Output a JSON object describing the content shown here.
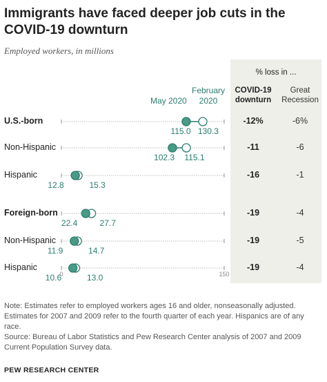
{
  "title": "Immigrants have faced deeper job cuts in the COVID-19 downturn",
  "subtitle": "Employed workers, in millions",
  "header": {
    "main": "% loss in ...",
    "col1": [
      "COVID-19",
      "downturn"
    ],
    "col2": [
      "Great",
      "Recession"
    ]
  },
  "legend": {
    "may": "May 2020",
    "feb": [
      "February",
      "2020"
    ]
  },
  "colors": {
    "accent": "#2a7c6f",
    "filled": "#4a9b86",
    "panel": "#efefe9",
    "line": "#bbbbbb"
  },
  "chart_data": {
    "type": "dot-plot",
    "title": "Immigrants have faced deeper job cuts in the COVID-19 downturn",
    "subtitle": "Employed workers, in millions",
    "xlim": [
      0,
      150
    ],
    "x_ticks": [
      "0",
      "150"
    ],
    "series": [
      {
        "name": "May 2020",
        "marker": "filled"
      },
      {
        "name": "February 2020",
        "marker": "open"
      }
    ],
    "rows": [
      {
        "label": "U.S.-born",
        "bold": true,
        "may": 115.0,
        "may_label": "115.0",
        "feb": 130.3,
        "feb_label": "130.3",
        "covid": "-12%",
        "recession": "-6%"
      },
      {
        "label": "Non-Hispanic",
        "bold": false,
        "may": 102.3,
        "may_label": "102.3",
        "feb": 115.1,
        "feb_label": "115.1",
        "covid": "-11",
        "recession": "-6"
      },
      {
        "label": "Hispanic",
        "bold": false,
        "may": 12.8,
        "may_label": "12.8",
        "feb": 15.3,
        "feb_label": "15.3",
        "covid": "-16",
        "recession": "-1"
      },
      {
        "label": "Foreign-born",
        "bold": true,
        "may": 22.4,
        "may_label": "22.4",
        "feb": 27.7,
        "feb_label": "27.7",
        "covid": "-19",
        "recession": "-4"
      },
      {
        "label": "Non-Hispanic",
        "bold": false,
        "may": 11.9,
        "may_label": "11.9",
        "feb": 14.7,
        "feb_label": "14.7",
        "covid": "-19",
        "recession": "-5"
      },
      {
        "label": "Hispanic",
        "bold": false,
        "may": 10.6,
        "may_label": "10.6",
        "feb": 13.0,
        "feb_label": "13.0",
        "covid": "-19",
        "recession": "-4"
      }
    ]
  },
  "notes": [
    "Note: Estimates refer to employed workers ages 16 and older, nonseasonally adjusted. Estimates for 2007 and 2009 refer to the fourth quarter of each year. Hispanics are of any race.",
    "Source: Bureau of Labor Statistics and Pew Research Center analysis of 2007 and 2009 Current Population Survey data."
  ],
  "brand": "PEW RESEARCH CENTER"
}
